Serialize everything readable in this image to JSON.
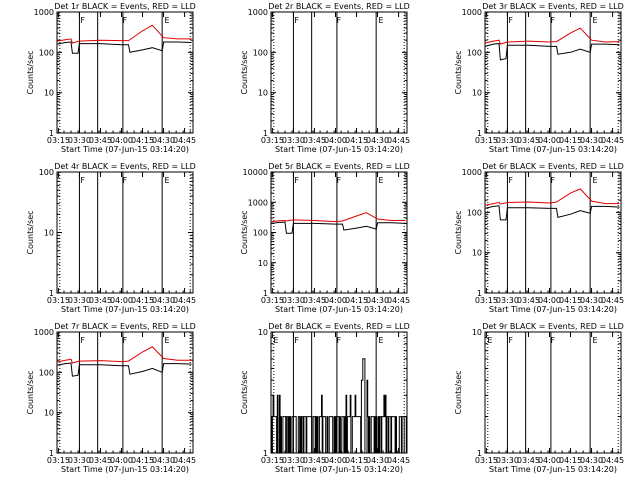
{
  "page": {
    "background": "#ffffff",
    "colors": {
      "events": "#000000",
      "lld": "#e00000",
      "axis": "#000000"
    }
  },
  "axis_common": {
    "ylabel": "Counts/sec",
    "xlabel": "Start Time (07-Jun-15 03:14:20)",
    "x_tick_labels": [
      "03:15",
      "03:30",
      "03:45",
      "04:00",
      "04:15",
      "04:30",
      "04:45"
    ],
    "x_range_minutes": [
      "03:14",
      "04:51"
    ]
  },
  "chart_data": [
    {
      "type": "line",
      "title": "Det 1r BLACK = Events, RED = LLD",
      "yscale": "log",
      "ylim": [
        1,
        1000
      ],
      "y_tick_labels": [
        "1",
        "10",
        "100",
        "1000"
      ],
      "markers": [
        {
          "time": "03:30",
          "label": "F"
        },
        {
          "time": "04:00",
          "label": "F"
        },
        {
          "time": "04:30",
          "label": "E"
        }
      ],
      "solid_vlines": [
        "03:30",
        "03:43",
        "04:01",
        "04:29"
      ],
      "dotted_vlines": [
        "03:16",
        "04:49"
      ],
      "series": [
        {
          "color": "red",
          "x": [
            "03:14",
            "03:20",
            "03:24",
            "03:25",
            "03:30",
            "03:45",
            "04:00",
            "04:05",
            "04:15",
            "04:22",
            "04:30",
            "04:40",
            "04:50"
          ],
          "y": [
            190,
            205,
            215,
            170,
            190,
            200,
            195,
            195,
            340,
            470,
            230,
            215,
            215
          ]
        },
        {
          "color": "black",
          "x": [
            "03:14",
            "03:20",
            "03:24",
            "03:25",
            "03:29",
            "03:30",
            "03:45",
            "04:00",
            "04:05",
            "04:06",
            "04:15",
            "04:22",
            "04:29",
            "04:30",
            "04:40",
            "04:50"
          ],
          "y": [
            160,
            175,
            180,
            95,
            95,
            165,
            165,
            155,
            155,
            100,
            115,
            130,
            110,
            180,
            180,
            175
          ]
        }
      ]
    },
    {
      "type": "line",
      "title": "Det 2r BLACK = Events, RED = LLD",
      "yscale": "log",
      "ylim": [
        1,
        1000
      ],
      "y_tick_labels": [
        "1",
        "10",
        "100",
        "1000"
      ],
      "markers": [
        {
          "time": "03:30",
          "label": "F"
        },
        {
          "time": "04:00",
          "label": "F"
        },
        {
          "time": "04:30",
          "label": "E"
        }
      ],
      "solid_vlines": [
        "03:30",
        "03:43",
        "04:01",
        "04:29"
      ],
      "dotted_vlines": [
        "03:16",
        "04:49"
      ],
      "series": []
    },
    {
      "type": "line",
      "title": "Det 3r BLACK = Events, RED = LLD",
      "yscale": "log",
      "ylim": [
        1,
        1000
      ],
      "y_tick_labels": [
        "1",
        "10",
        "100",
        "1000"
      ],
      "markers": [
        {
          "time": "03:30",
          "label": "F"
        },
        {
          "time": "04:00",
          "label": "F"
        },
        {
          "time": "04:30",
          "label": "E"
        }
      ],
      "solid_vlines": [
        "03:30",
        "03:43",
        "04:01",
        "04:29"
      ],
      "dotted_vlines": [
        "03:16",
        "04:49"
      ],
      "series": [
        {
          "color": "red",
          "x": [
            "03:14",
            "03:20",
            "03:24",
            "03:25",
            "03:30",
            "03:45",
            "04:00",
            "04:05",
            "04:15",
            "04:22",
            "04:30",
            "04:40",
            "04:50"
          ],
          "y": [
            170,
            190,
            200,
            160,
            180,
            190,
            180,
            185,
            300,
            400,
            200,
            180,
            185
          ]
        },
        {
          "color": "black",
          "x": [
            "03:14",
            "03:20",
            "03:24",
            "03:25",
            "03:29",
            "03:30",
            "03:45",
            "04:00",
            "04:05",
            "04:06",
            "04:15",
            "04:22",
            "04:29",
            "04:30",
            "04:40",
            "04:50"
          ],
          "y": [
            140,
            160,
            165,
            65,
            70,
            150,
            150,
            140,
            140,
            90,
            100,
            120,
            100,
            160,
            160,
            155
          ]
        }
      ]
    },
    {
      "type": "line",
      "title": "Det 4r BLACK = Events, RED = LLD",
      "yscale": "log",
      "ylim": [
        1,
        100
      ],
      "y_tick_labels": [
        "1",
        "10",
        "100"
      ],
      "markers": [
        {
          "time": "03:30",
          "label": "F"
        },
        {
          "time": "04:00",
          "label": "F"
        },
        {
          "time": "04:30",
          "label": "E"
        }
      ],
      "solid_vlines": [
        "03:30",
        "03:43",
        "04:01",
        "04:29"
      ],
      "dotted_vlines": [
        "03:16",
        "04:49"
      ],
      "series": []
    },
    {
      "type": "line",
      "title": "Det 5r BLACK = Events, RED = LLD",
      "yscale": "log",
      "ylim": [
        1,
        10000
      ],
      "y_tick_labels": [
        "1",
        "10",
        "100",
        "1000",
        "10000"
      ],
      "markers": [
        {
          "time": "03:30",
          "label": "F"
        },
        {
          "time": "04:00",
          "label": "F"
        },
        {
          "time": "04:30",
          "label": "E"
        }
      ],
      "solid_vlines": [
        "03:30",
        "03:43",
        "04:01",
        "04:29"
      ],
      "dotted_vlines": [
        "03:16",
        "04:49"
      ],
      "series": [
        {
          "color": "red",
          "x": [
            "03:14",
            "03:20",
            "03:24",
            "03:25",
            "03:30",
            "03:45",
            "04:00",
            "04:05",
            "04:15",
            "04:22",
            "04:30",
            "04:40",
            "04:50"
          ],
          "y": [
            230,
            245,
            250,
            240,
            260,
            250,
            230,
            240,
            350,
            450,
            280,
            250,
            250
          ]
        },
        {
          "color": "black",
          "x": [
            "03:14",
            "03:20",
            "03:24",
            "03:25",
            "03:29",
            "03:30",
            "03:45",
            "04:00",
            "04:05",
            "04:06",
            "04:15",
            "04:22",
            "04:29",
            "04:30",
            "04:40",
            "04:50"
          ],
          "y": [
            200,
            215,
            220,
            95,
            95,
            200,
            200,
            190,
            190,
            120,
            140,
            160,
            130,
            210,
            210,
            200
          ]
        }
      ]
    },
    {
      "type": "line",
      "title": "Det 6r BLACK = Events, RED = LLD",
      "yscale": "log",
      "ylim": [
        1,
        1000
      ],
      "y_tick_labels": [
        "1",
        "10",
        "100",
        "1000"
      ],
      "markers": [
        {
          "time": "03:30",
          "label": "F"
        },
        {
          "time": "04:00",
          "label": "F"
        },
        {
          "time": "04:30",
          "label": "E"
        }
      ],
      "solid_vlines": [
        "03:30",
        "03:43",
        "04:01",
        "04:29"
      ],
      "dotted_vlines": [
        "03:16",
        "04:49"
      ],
      "series": [
        {
          "color": "red",
          "x": [
            "03:14",
            "03:20",
            "03:24",
            "03:25",
            "03:30",
            "03:45",
            "04:00",
            "04:05",
            "04:15",
            "04:22",
            "04:30",
            "04:40",
            "04:50"
          ],
          "y": [
            150,
            165,
            175,
            160,
            175,
            180,
            170,
            180,
            300,
            380,
            190,
            165,
            165
          ]
        },
        {
          "color": "black",
          "x": [
            "03:14",
            "03:20",
            "03:24",
            "03:25",
            "03:29",
            "03:30",
            "03:45",
            "04:00",
            "04:05",
            "04:06",
            "04:15",
            "04:22",
            "04:29",
            "04:30",
            "04:40",
            "04:50"
          ],
          "y": [
            125,
            140,
            145,
            65,
            65,
            130,
            130,
            125,
            125,
            75,
            90,
            110,
            95,
            140,
            140,
            135
          ]
        }
      ]
    },
    {
      "type": "line",
      "title": "Det 7r BLACK = Events, RED = LLD",
      "yscale": "log",
      "ylim": [
        1,
        1000
      ],
      "y_tick_labels": [
        "1",
        "10",
        "100",
        "1000"
      ],
      "markers": [
        {
          "time": "03:30",
          "label": "F"
        },
        {
          "time": "04:00",
          "label": "F"
        },
        {
          "time": "04:30",
          "label": "E"
        }
      ],
      "solid_vlines": [
        "03:30",
        "03:43",
        "04:01",
        "04:29"
      ],
      "dotted_vlines": [
        "03:16",
        "04:49"
      ],
      "series": [
        {
          "color": "red",
          "x": [
            "03:14",
            "03:20",
            "03:24",
            "03:25",
            "03:30",
            "03:45",
            "04:00",
            "04:05",
            "04:15",
            "04:22",
            "04:30",
            "04:40",
            "04:50"
          ],
          "y": [
            180,
            200,
            210,
            170,
            190,
            195,
            185,
            190,
            320,
            430,
            220,
            200,
            200
          ]
        },
        {
          "color": "black",
          "x": [
            "03:14",
            "03:20",
            "03:24",
            "03:25",
            "03:29",
            "03:30",
            "03:45",
            "04:00",
            "04:05",
            "04:06",
            "04:15",
            "04:22",
            "04:29",
            "04:30",
            "04:40",
            "04:50"
          ],
          "y": [
            150,
            165,
            170,
            80,
            85,
            155,
            155,
            145,
            145,
            90,
            105,
            125,
            100,
            165,
            165,
            160
          ]
        }
      ]
    },
    {
      "type": "line",
      "title": "Det 8r BLACK = Events, RED = LLD",
      "yscale": "log",
      "ylim": [
        1,
        10
      ],
      "y_tick_labels": [
        "1",
        "10"
      ],
      "markers": [
        {
          "time": "03:15",
          "label": "E"
        },
        {
          "time": "03:30",
          "label": "F"
        },
        {
          "time": "04:00",
          "label": "F"
        },
        {
          "time": "04:30",
          "label": "E"
        }
      ],
      "solid_vlines": [
        "03:30",
        "03:43",
        "04:01",
        "04:29"
      ],
      "dotted_vlines": [
        "03:16",
        "04:49"
      ],
      "series": [
        {
          "color": "black",
          "style": "noisy_counts",
          "x_range": [
            "03:14",
            "04:51"
          ],
          "levels": [
            1,
            2,
            3,
            4
          ],
          "peak": {
            "time": "04:20",
            "value": 6
          }
        }
      ]
    },
    {
      "type": "line",
      "title": "Det 9r BLACK = Events, RED = LLD",
      "yscale": "log",
      "ylim": [
        1,
        10
      ],
      "y_tick_labels": [
        "1",
        "10"
      ],
      "markers": [
        {
          "time": "03:15",
          "label": "E"
        },
        {
          "time": "03:30",
          "label": "F"
        },
        {
          "time": "04:00",
          "label": "F"
        },
        {
          "time": "04:30",
          "label": "E"
        }
      ],
      "solid_vlines": [
        "03:30",
        "03:43",
        "04:01",
        "04:29"
      ],
      "dotted_vlines": [
        "03:16",
        "04:49"
      ],
      "series": []
    }
  ]
}
